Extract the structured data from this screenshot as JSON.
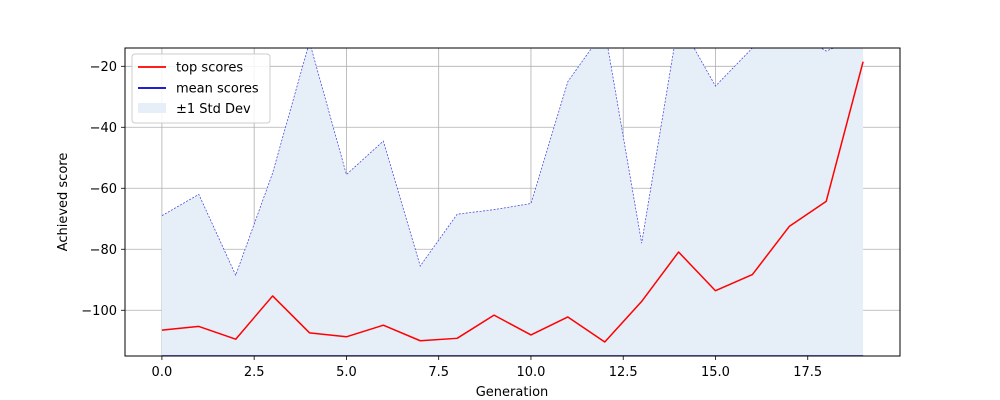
{
  "chart_data": {
    "type": "line",
    "title": "",
    "xlabel": "Generation",
    "ylabel": "Achieved score",
    "xlim": [
      -1.0,
      20.0
    ],
    "ylim": [
      -115.0,
      -14.0
    ],
    "grid": true,
    "legend_position": "top-left",
    "x_ticks": [
      0.0,
      2.5,
      5.0,
      7.5,
      10.0,
      12.5,
      15.0,
      17.5
    ],
    "x_tick_labels": [
      "0.0",
      "2.5",
      "5.0",
      "7.5",
      "10.0",
      "12.5",
      "15.0",
      "17.5"
    ],
    "y_ticks": [
      -100,
      -80,
      -60,
      -40,
      -20
    ],
    "y_tick_labels": [
      "−100",
      "−80",
      "−60",
      "−40",
      "−20"
    ],
    "x": [
      0,
      1,
      2,
      3,
      4,
      5,
      6,
      7,
      8,
      9,
      10,
      11,
      12,
      13,
      14,
      15,
      16,
      17,
      18,
      19
    ],
    "series": [
      {
        "name": "top scores",
        "color": "#ff0000",
        "values": [
          -106.5,
          -105.3,
          -109.5,
          -95.3,
          -107.4,
          -108.7,
          -104.9,
          -110.0,
          -109.2,
          -101.6,
          -108.1,
          -102.2,
          -110.4,
          -97.1,
          -80.9,
          -93.6,
          -88.3,
          -72.5,
          -64.3,
          -18.5
        ]
      },
      {
        "name": "mean scores",
        "color": "#0000cc",
        "values": [
          -115.0,
          -115.0,
          -115.0,
          -115.0,
          -115.0,
          -115.0,
          -115.0,
          -115.0,
          -115.0,
          -115.0,
          -115.0,
          -115.0,
          -115.0,
          -115.0,
          -115.0,
          -115.0,
          -115.0,
          -115.0,
          -115.0,
          -115.0
        ]
      },
      {
        "name": "±1 Std Dev",
        "type": "area",
        "color": "#e6eef7",
        "upper": [
          -69.0,
          -62.0,
          -88.5,
          -55.0,
          -12.0,
          -55.5,
          -44.5,
          -85.5,
          -68.5,
          -67.0,
          -65.0,
          -25.0,
          -8.0,
          -78.0,
          -5.0,
          -26.5,
          -14.0,
          -8.0,
          -15.0,
          -10.0
        ],
        "lower": [
          -115.0,
          -115.0,
          -115.0,
          -115.0,
          -115.0,
          -115.0,
          -115.0,
          -115.0,
          -115.0,
          -115.0,
          -115.0,
          -115.0,
          -115.0,
          -115.0,
          -115.0,
          -115.0,
          -115.0,
          -115.0,
          -115.0,
          -115.0
        ]
      }
    ]
  }
}
